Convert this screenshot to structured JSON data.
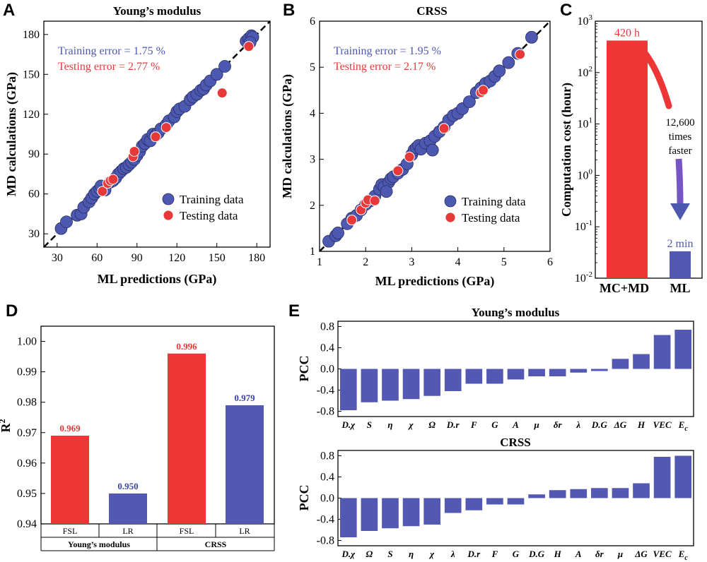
{
  "panels": {
    "a": "A",
    "b": "B",
    "c": "C",
    "d": "D",
    "e": "E"
  },
  "colors": {
    "training": "#4d58b0",
    "testing": "#e8393a",
    "edge": "#2a2f66",
    "bar_red": "#ee3636",
    "bar_blue": "#5359b3"
  },
  "chart_data": [
    {
      "id": "A",
      "type": "scatter",
      "title": "Young’s modulus",
      "xlabel": "ML predictions (GPa)",
      "ylabel": "MD calculations (GPa)",
      "xlim": [
        20,
        190
      ],
      "ylim": [
        20,
        190
      ],
      "xticks": [
        "30",
        "60",
        "90",
        "120",
        "150",
        "180"
      ],
      "yticks": [
        "30",
        "60",
        "90",
        "120",
        "150",
        "180"
      ],
      "annotations": {
        "training_error": "Training error = 1.75 %",
        "testing_error": "Testing error = 2.77 %"
      },
      "legend": {
        "position": "bottom-right",
        "training": "Training data",
        "testing": "Testing data"
      },
      "series": [
        {
          "name": "Training data",
          "points": [
            [
              33,
              34
            ],
            [
              37,
              39
            ],
            [
              45,
              44
            ],
            [
              48,
              45
            ],
            [
              50,
              50
            ],
            [
              54,
              54
            ],
            [
              56,
              57
            ],
            [
              58,
              60
            ],
            [
              60,
              62
            ],
            [
              62,
              64
            ],
            [
              63,
              66
            ],
            [
              66,
              63
            ],
            [
              70,
              69
            ],
            [
              72,
              70
            ],
            [
              74,
              72
            ],
            [
              76,
              75
            ],
            [
              78,
              77
            ],
            [
              80,
              79
            ],
            [
              82,
              80
            ],
            [
              84,
              82
            ],
            [
              86,
              84
            ],
            [
              88,
              86
            ],
            [
              90,
              89
            ],
            [
              92,
              92
            ],
            [
              94,
              96
            ],
            [
              96,
              98
            ],
            [
              98,
              101
            ],
            [
              100,
              100
            ],
            [
              102,
              105
            ],
            [
              104,
              104
            ],
            [
              106,
              106
            ],
            [
              108,
              109
            ],
            [
              112,
              112
            ],
            [
              114,
              115
            ],
            [
              118,
              118
            ],
            [
              120,
              122
            ],
            [
              122,
              124
            ],
            [
              126,
              126
            ],
            [
              130,
              131
            ],
            [
              132,
              133
            ],
            [
              135,
              135
            ],
            [
              138,
              138
            ],
            [
              140,
              139
            ],
            [
              142,
              142
            ],
            [
              145,
              145
            ],
            [
              150,
              150
            ],
            [
              156,
              156
            ],
            [
              172,
              175
            ],
            [
              174,
              177
            ],
            [
              176,
              179
            ],
            [
              177,
              178
            ],
            [
              175,
              174
            ]
          ]
        },
        {
          "name": "Testing data",
          "points": [
            [
              64,
              62
            ],
            [
              68,
              68
            ],
            [
              70,
              70
            ],
            [
              72,
              71
            ],
            [
              87,
              88
            ],
            [
              88,
              92
            ],
            [
              104,
              103
            ],
            [
              112,
              110
            ],
            [
              154,
              136
            ],
            [
              174,
              171
            ]
          ]
        }
      ]
    },
    {
      "id": "B",
      "type": "scatter",
      "title": "CRSS",
      "xlabel": "ML predictions (GPa)",
      "ylabel": "MD calculations (GPa)",
      "xlim": [
        1,
        6
      ],
      "ylim": [
        1,
        6
      ],
      "xticks": [
        "1",
        "2",
        "3",
        "4",
        "5",
        "6"
      ],
      "yticks": [
        "1",
        "2",
        "3",
        "4",
        "5",
        "6"
      ],
      "annotations": {
        "training_error": "Training error = 1.95 %",
        "testing_error": "Testing error = 2.17 %"
      },
      "legend": {
        "position": "bottom-right",
        "training": "Training data",
        "testing": "Testing data"
      },
      "series": [
        {
          "name": "Training data",
          "points": [
            [
              1.2,
              1.22
            ],
            [
              1.35,
              1.34
            ],
            [
              1.4,
              1.4
            ],
            [
              1.6,
              1.6
            ],
            [
              1.7,
              1.72
            ],
            [
              1.8,
              1.78
            ],
            [
              1.9,
              1.9
            ],
            [
              2.0,
              2.02
            ],
            [
              2.1,
              2.1
            ],
            [
              2.2,
              2.2
            ],
            [
              2.3,
              2.35
            ],
            [
              2.35,
              2.45
            ],
            [
              2.4,
              2.4
            ],
            [
              2.5,
              2.5
            ],
            [
              2.55,
              2.58
            ],
            [
              2.6,
              2.62
            ],
            [
              2.7,
              2.7
            ],
            [
              2.8,
              2.78
            ],
            [
              2.9,
              2.9
            ],
            [
              3.0,
              3.1
            ],
            [
              3.05,
              3.2
            ],
            [
              3.1,
              3.25
            ],
            [
              3.15,
              3.3
            ],
            [
              3.2,
              3.22
            ],
            [
              3.3,
              3.35
            ],
            [
              3.4,
              3.4
            ],
            [
              3.5,
              3.5
            ],
            [
              3.6,
              3.6
            ],
            [
              3.7,
              3.7
            ],
            [
              3.8,
              3.85
            ],
            [
              3.9,
              3.95
            ],
            [
              4.0,
              4.0
            ],
            [
              4.1,
              4.1
            ],
            [
              4.25,
              4.25
            ],
            [
              4.4,
              4.45
            ],
            [
              4.5,
              4.55
            ],
            [
              4.6,
              4.65
            ],
            [
              4.7,
              4.7
            ],
            [
              4.8,
              4.8
            ],
            [
              4.9,
              4.92
            ],
            [
              5.1,
              5.1
            ],
            [
              5.3,
              5.3
            ],
            [
              5.6,
              5.65
            ],
            [
              3.45,
              3.2
            ],
            [
              2.45,
              2.3
            ]
          ]
        },
        {
          "name": "Testing data",
          "points": [
            [
              1.7,
              1.68
            ],
            [
              1.9,
              1.9
            ],
            [
              2.0,
              2.05
            ],
            [
              2.05,
              2.12
            ],
            [
              2.2,
              2.1
            ],
            [
              2.7,
              2.75
            ],
            [
              2.95,
              3.05
            ],
            [
              3.7,
              3.67
            ],
            [
              4.5,
              4.45
            ],
            [
              4.55,
              4.5
            ],
            [
              5.35,
              5.28
            ]
          ]
        }
      ]
    },
    {
      "id": "C",
      "type": "bar",
      "ylabel": "Computation cost (hour)",
      "yscale": "log",
      "ylim_exp": [
        -2,
        3
      ],
      "categories": [
        "MC+MD",
        "ML"
      ],
      "values": [
        420,
        0.0333
      ],
      "value_labels": [
        "420 h",
        "2 min"
      ],
      "annotation": [
        "12,600",
        "times",
        "faster"
      ]
    },
    {
      "id": "D",
      "type": "bar",
      "ylabel": "R",
      "ylabel_sup": "2",
      "ylim": [
        0.94,
        1.005
      ],
      "yticks": [
        "1.00",
        "0.99",
        "0.98",
        "0.97",
        "0.96",
        "0.95",
        "0.94"
      ],
      "groups": [
        "Young’s modulus",
        "CRSS"
      ],
      "categories": [
        "FSL",
        "LR",
        "FSL",
        "LR"
      ],
      "values": [
        0.969,
        0.95,
        0.996,
        0.979
      ],
      "value_labels": [
        "0.969",
        "0.950",
        "0.996",
        "0.979"
      ]
    },
    {
      "id": "E1",
      "type": "bar",
      "title": "Young’s modulus",
      "ylabel": "PCC",
      "ylim": [
        -0.9,
        0.9
      ],
      "yticks": [
        "0.8",
        "0.4",
        "0.0",
        "-0.4",
        "-0.8"
      ],
      "categories": [
        "D.χ",
        "S",
        "η",
        "χ",
        "Ω",
        "D.r",
        "F",
        "G",
        "A",
        "μ",
        "δr",
        "λ",
        "D.G",
        "ΔG",
        "H",
        "VEC",
        "E"
      ],
      "last_category_sub": "c",
      "values": [
        -0.78,
        -0.63,
        -0.6,
        -0.57,
        -0.51,
        -0.42,
        -0.28,
        -0.28,
        -0.2,
        -0.14,
        -0.14,
        -0.07,
        -0.04,
        0.19,
        0.28,
        0.64,
        0.74
      ]
    },
    {
      "id": "E2",
      "type": "bar",
      "title": "CRSS",
      "ylabel": "PCC",
      "ylim": [
        -0.9,
        0.9
      ],
      "yticks": [
        "0.8",
        "0.4",
        "0.0",
        "-0.4",
        "-0.8"
      ],
      "categories": [
        "D.χ",
        "Ω",
        "S",
        "η",
        "χ",
        "λ",
        "D.r",
        "F",
        "G",
        "D.G",
        "H",
        "A",
        "δr",
        "μ",
        "ΔG",
        "VEC",
        "E"
      ],
      "last_category_sub": "c",
      "values": [
        -0.74,
        -0.62,
        -0.57,
        -0.53,
        -0.5,
        -0.28,
        -0.23,
        -0.12,
        -0.12,
        0.07,
        0.15,
        0.17,
        0.19,
        0.19,
        0.28,
        0.78,
        0.8
      ]
    }
  ]
}
